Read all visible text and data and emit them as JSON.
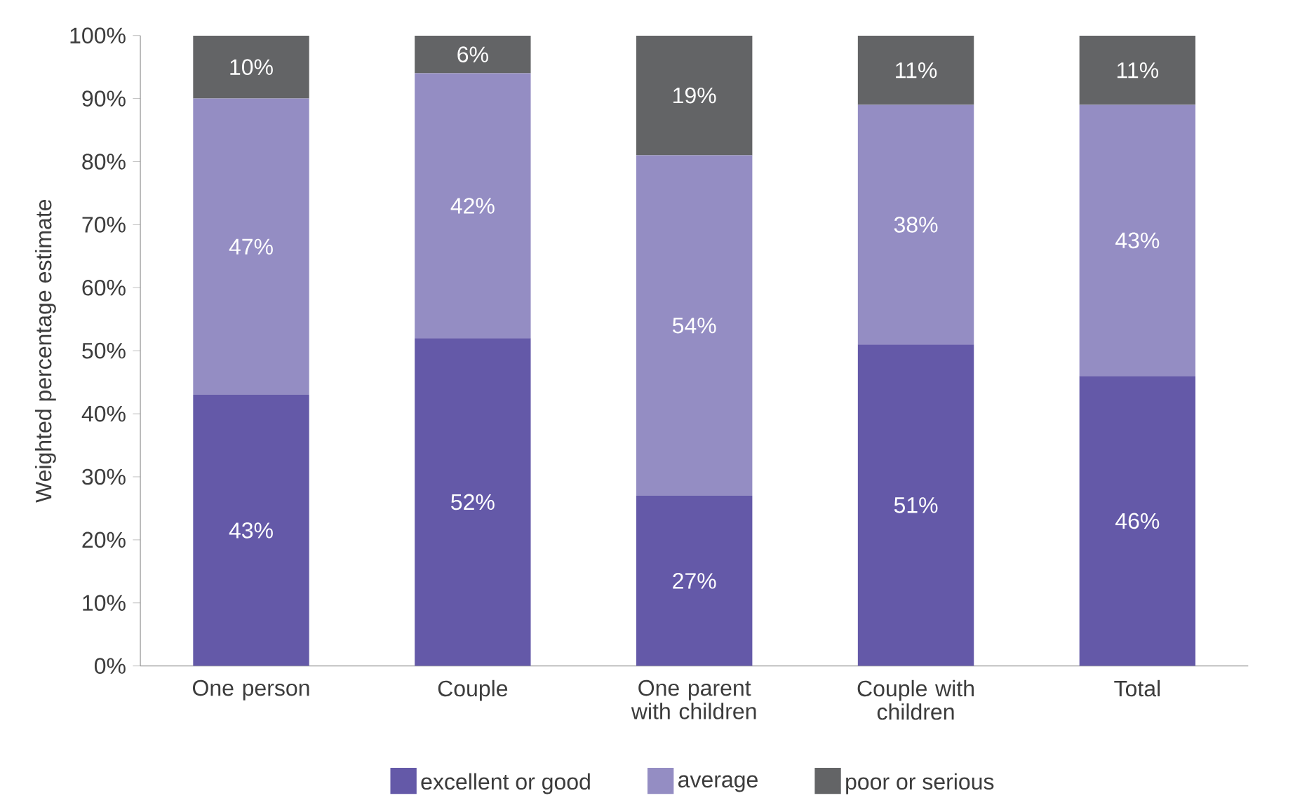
{
  "chart_data": {
    "type": "bar",
    "stacked": true,
    "ylabel": "Weighted percentage estimate",
    "categories": [
      "One person",
      "Couple",
      "One parent with children",
      "Couple with children",
      "Total"
    ],
    "series": [
      {
        "name": "excellent or good",
        "color": "#6459a8",
        "values": [
          43,
          52,
          27,
          51,
          46
        ],
        "value_labels": [
          "43%",
          "52%",
          "27%",
          "51%",
          "46%"
        ]
      },
      {
        "name": "average",
        "color": "#948dc3",
        "values": [
          47,
          42,
          54,
          38,
          43
        ],
        "value_labels": [
          "47%",
          "42%",
          "54%",
          "38%",
          "43%"
        ]
      },
      {
        "name": "poor or serious",
        "color": "#636466",
        "values": [
          10,
          6,
          19,
          11,
          11
        ],
        "value_labels": [
          "10%",
          "6%",
          "19%",
          "11%",
          "11%"
        ]
      }
    ],
    "ylim": [
      0,
      100
    ],
    "yticks": [
      {
        "value": 0,
        "label": "0%"
      },
      {
        "value": 10,
        "label": "10%"
      },
      {
        "value": 20,
        "label": "20%"
      },
      {
        "value": 30,
        "label": "30%"
      },
      {
        "value": 40,
        "label": "40%"
      },
      {
        "value": 50,
        "label": "50%"
      },
      {
        "value": 60,
        "label": "60%"
      },
      {
        "value": 70,
        "label": "70%"
      },
      {
        "value": 80,
        "label": "80%"
      },
      {
        "value": 90,
        "label": "90%"
      },
      {
        "value": 100,
        "label": "100%"
      }
    ],
    "grid": false,
    "legend": "bottom"
  }
}
